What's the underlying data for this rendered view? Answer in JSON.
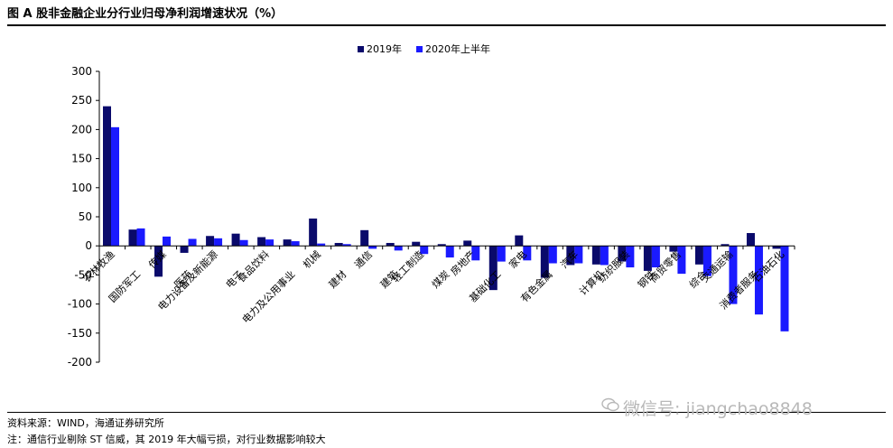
{
  "header": {
    "title": "图 A 股非金融企业分行业归母净利润增速状况（%）"
  },
  "footer": {
    "source": "资料来源：WIND，海通证券研究所",
    "note": "注：通信行业剔除 ST 信威，其 2019 年大幅亏损，对行业数据影响较大"
  },
  "watermark": {
    "text": "微信号: jiangchao8848",
    "icon": "wechat-icon"
  },
  "chart_data": {
    "type": "bar",
    "categories": [
      "农林牧渔",
      "国防军工",
      "传媒",
      "医药",
      "电力设备及新能源",
      "电子",
      "食品饮料",
      "电力及公用事业",
      "机械",
      "建材",
      "通信",
      "建筑",
      "轻工制造",
      "煤炭",
      "房地产",
      "基础化工",
      "家电",
      "有色金属",
      "汽车",
      "计算机",
      "纺织服装",
      "钢铁",
      "商贸零售",
      "综合",
      "交通运输",
      "消费者服务",
      "石油石化"
    ],
    "series": [
      {
        "name": "2019年",
        "color": "#0a0a6b",
        "values": [
          240,
          28,
          -53,
          -12,
          17,
          21,
          15,
          11,
          47,
          5,
          27,
          5,
          7,
          3,
          9,
          -76,
          18,
          -55,
          -33,
          -32,
          -27,
          -43,
          -10,
          -32,
          3,
          22,
          -5
        ]
      },
      {
        "name": "2020年上半年",
        "color": "#1a1aff",
        "values": [
          204,
          30,
          16,
          12,
          13,
          10,
          11,
          8,
          4,
          3,
          -5,
          -8,
          -14,
          -20,
          -25,
          -27,
          -25,
          -30,
          -30,
          -33,
          -37,
          -37,
          -48,
          -52,
          -100,
          -118,
          -147
        ]
      }
    ],
    "yticks": [
      300,
      250,
      200,
      150,
      100,
      50,
      0,
      -50,
      -100,
      -150,
      -200
    ],
    "ylim": [
      -200,
      300
    ],
    "legend_position": "top-center",
    "grid": false
  }
}
